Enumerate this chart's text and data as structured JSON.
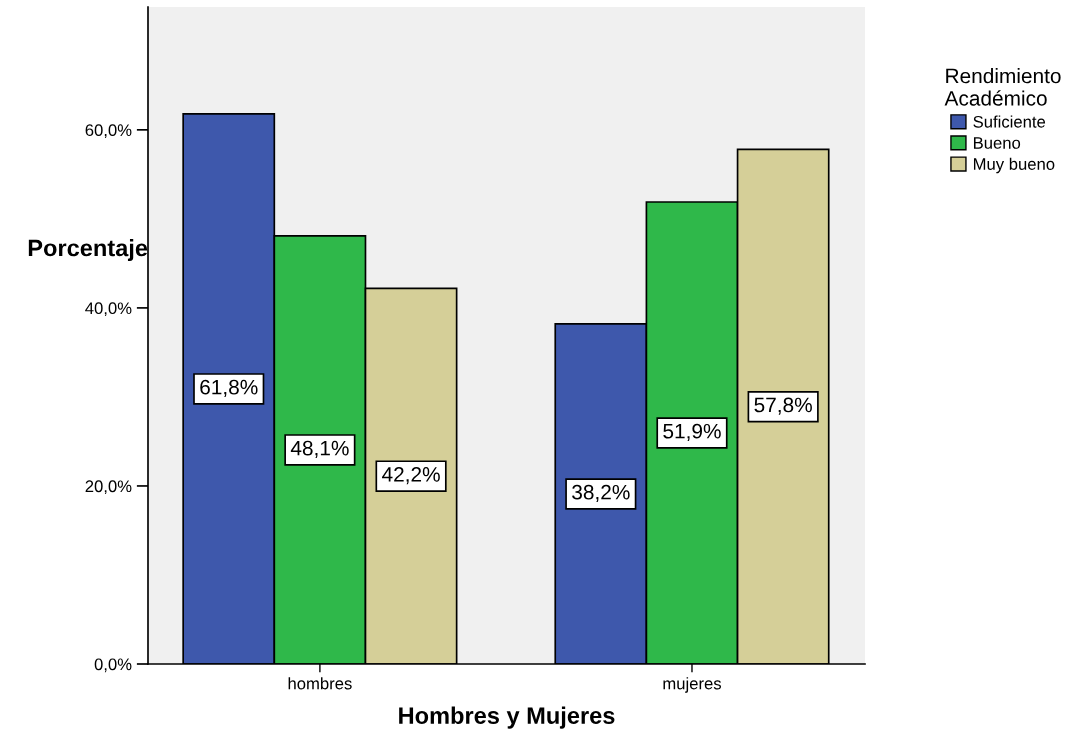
{
  "chart_data": {
    "type": "bar",
    "xlabel": "Hombres y Mujeres",
    "ylabel": "Porcentaje",
    "legend_title": "Rendimiento\nAcadémico",
    "categories": [
      "hombres",
      "mujeres"
    ],
    "series": [
      {
        "name": "Suficiente",
        "color": "#3e58ac",
        "values": [
          61.8,
          38.2
        ],
        "value_labels": [
          "61,8%",
          "38,2%"
        ]
      },
      {
        "name": "Bueno",
        "color": "#2fb84a",
        "values": [
          48.1,
          51.9
        ],
        "value_labels": [
          "48,1%",
          "51,9%"
        ]
      },
      {
        "name": "Muy bueno",
        "color": "#d5cf98",
        "values": [
          42.2,
          57.8
        ],
        "value_labels": [
          "42,2%",
          "57,8%"
        ]
      }
    ],
    "ylim": [
      0,
      73.8
    ],
    "yticks": [
      {
        "value": 0,
        "label": "0,0%"
      },
      {
        "value": 20,
        "label": "20,0%"
      },
      {
        "value": 40,
        "label": "40,0%"
      },
      {
        "value": 60,
        "label": "60,0%"
      }
    ],
    "grid": false,
    "legend": "right"
  }
}
